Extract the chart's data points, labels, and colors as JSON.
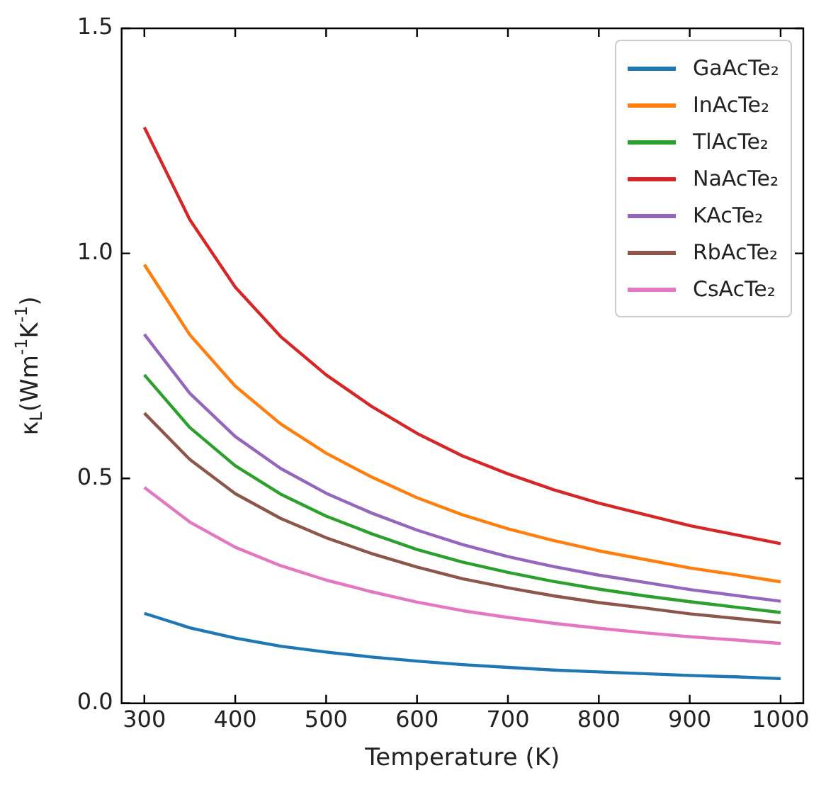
{
  "chart_data": {
    "type": "line",
    "xlabel": "Temperature (K)",
    "ylabel": "κ$_{L}$(Wm$^{-1}$K$^{-1}$)",
    "x": [
      300,
      350,
      400,
      450,
      500,
      550,
      600,
      650,
      700,
      750,
      800,
      850,
      900,
      950,
      1000
    ],
    "xlim": [
      275,
      1025
    ],
    "xticks": [
      300,
      400,
      500,
      600,
      700,
      800,
      900,
      1000
    ],
    "ylim": [
      0,
      1.5
    ],
    "yticks": [
      {
        "value": 0,
        "label": "0.0"
      },
      {
        "value": 0.5,
        "label": "0.5"
      },
      {
        "value": 1,
        "label": "1.0"
      },
      {
        "value": 1.5,
        "label": "1.5"
      }
    ],
    "legend": "top right",
    "grid": false,
    "marker": "none",
    "line_style": "solid",
    "series": [
      {
        "name": "GaAcTe₂",
        "color": "#1f77b4",
        "values": [
          0.2,
          0.168,
          0.145,
          0.127,
          0.114,
          0.103,
          0.094,
          0.086,
          0.08,
          0.074,
          0.07,
          0.066,
          0.062,
          0.059,
          0.055
        ]
      },
      {
        "name": "InAcTe₂",
        "color": "#ff7f0e",
        "values": [
          0.975,
          0.819,
          0.705,
          0.621,
          0.556,
          0.503,
          0.457,
          0.419,
          0.388,
          0.362,
          0.339,
          0.32,
          0.301,
          0.286,
          0.27
        ]
      },
      {
        "name": "TlAcTe₂",
        "color": "#2ca02c",
        "values": [
          0.73,
          0.613,
          0.528,
          0.465,
          0.416,
          0.377,
          0.342,
          0.314,
          0.291,
          0.271,
          0.254,
          0.239,
          0.226,
          0.214,
          0.202
        ]
      },
      {
        "name": "NaAcTe₂",
        "color": "#d62728",
        "values": [
          1.28,
          1.075,
          0.925,
          0.815,
          0.73,
          0.66,
          0.6,
          0.55,
          0.51,
          0.475,
          0.445,
          0.42,
          0.395,
          0.375,
          0.355
        ]
      },
      {
        "name": "KAcTe₂",
        "color": "#9467bd",
        "values": [
          0.82,
          0.689,
          0.593,
          0.522,
          0.467,
          0.423,
          0.385,
          0.353,
          0.326,
          0.304,
          0.285,
          0.269,
          0.253,
          0.24,
          0.227
        ]
      },
      {
        "name": "RbAcTe₂",
        "color": "#8c564b",
        "values": [
          0.645,
          0.542,
          0.466,
          0.411,
          0.368,
          0.333,
          0.303,
          0.277,
          0.257,
          0.239,
          0.224,
          0.212,
          0.199,
          0.189,
          0.179
        ]
      },
      {
        "name": "CsAcTe₂",
        "color": "#e377c2",
        "values": [
          0.48,
          0.403,
          0.347,
          0.306,
          0.274,
          0.248,
          0.225,
          0.206,
          0.191,
          0.178,
          0.167,
          0.157,
          0.148,
          0.141,
          0.133
        ]
      }
    ]
  }
}
